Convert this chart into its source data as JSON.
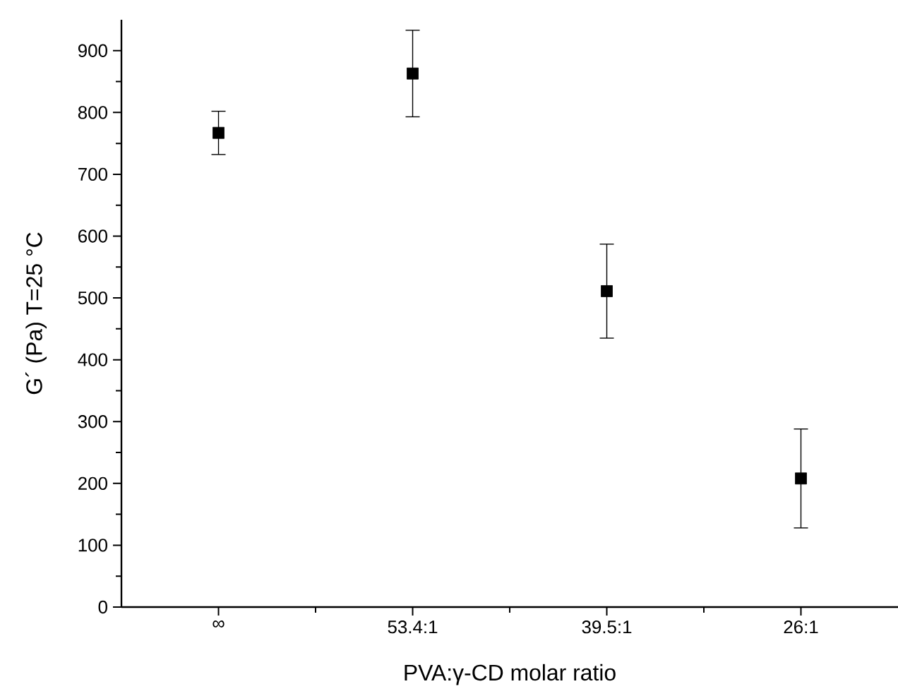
{
  "chart_data": {
    "type": "scatter",
    "xlabel": "PVA:γ-CD molar ratio",
    "ylabel": "G´ (Pa)  T=25 °C",
    "categories": [
      "∞",
      "53.4:1",
      "39.5:1",
      "26:1"
    ],
    "values": [
      767,
      863,
      511,
      208
    ],
    "errors": [
      35,
      70,
      76,
      80
    ],
    "color": "#000000",
    "marker": "square",
    "ylim": [
      0,
      950
    ],
    "yticks": [
      0,
      100,
      200,
      300,
      400,
      500,
      600,
      700,
      800,
      900
    ]
  }
}
